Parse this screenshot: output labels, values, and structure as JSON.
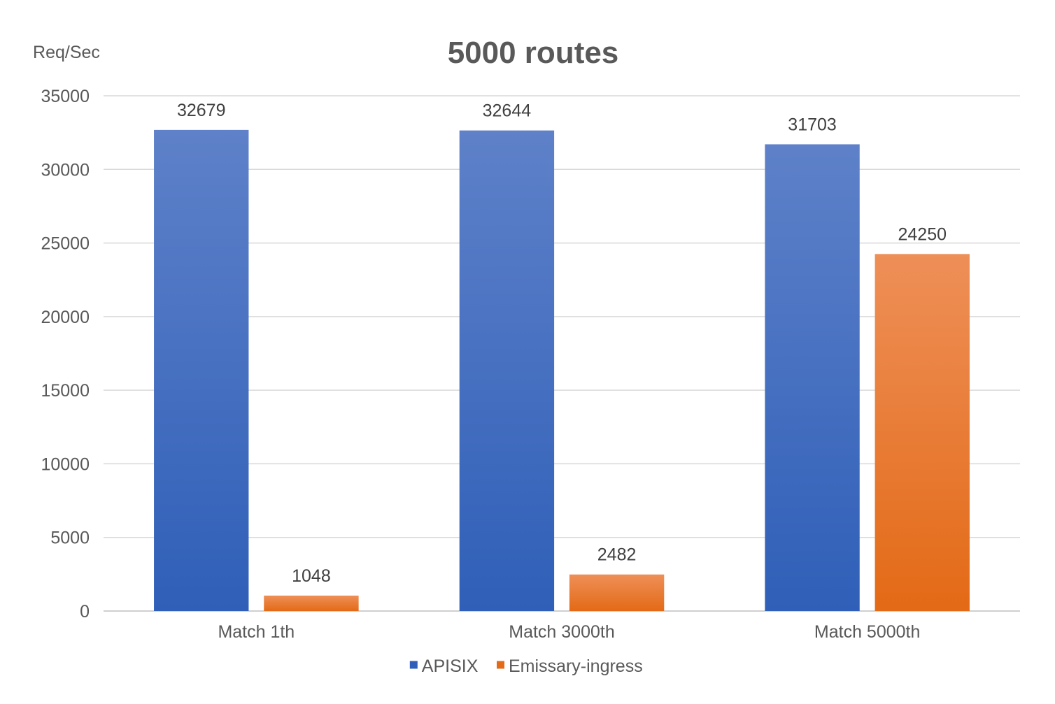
{
  "chart_data": {
    "type": "bar",
    "title": "5000 routes",
    "ylabel": "Req/Sec",
    "xlabel": "",
    "categories": [
      "Match 1th",
      "Match 3000th",
      "Match 5000th"
    ],
    "series": [
      {
        "name": "APISIX",
        "values": [
          32679,
          32644,
          31703
        ],
        "color_top": "#5e81c9",
        "color_bottom": "#2f5fb8"
      },
      {
        "name": "Emissary-ingress",
        "values": [
          1048,
          2482,
          24250
        ],
        "color_top": "#ee8f58",
        "color_bottom": "#e36a16"
      }
    ],
    "ylim": [
      0,
      35000
    ],
    "yticks": [
      0,
      5000,
      10000,
      15000,
      20000,
      25000,
      30000,
      35000
    ],
    "grid": true,
    "legend": "bottom",
    "data_labels": true
  }
}
